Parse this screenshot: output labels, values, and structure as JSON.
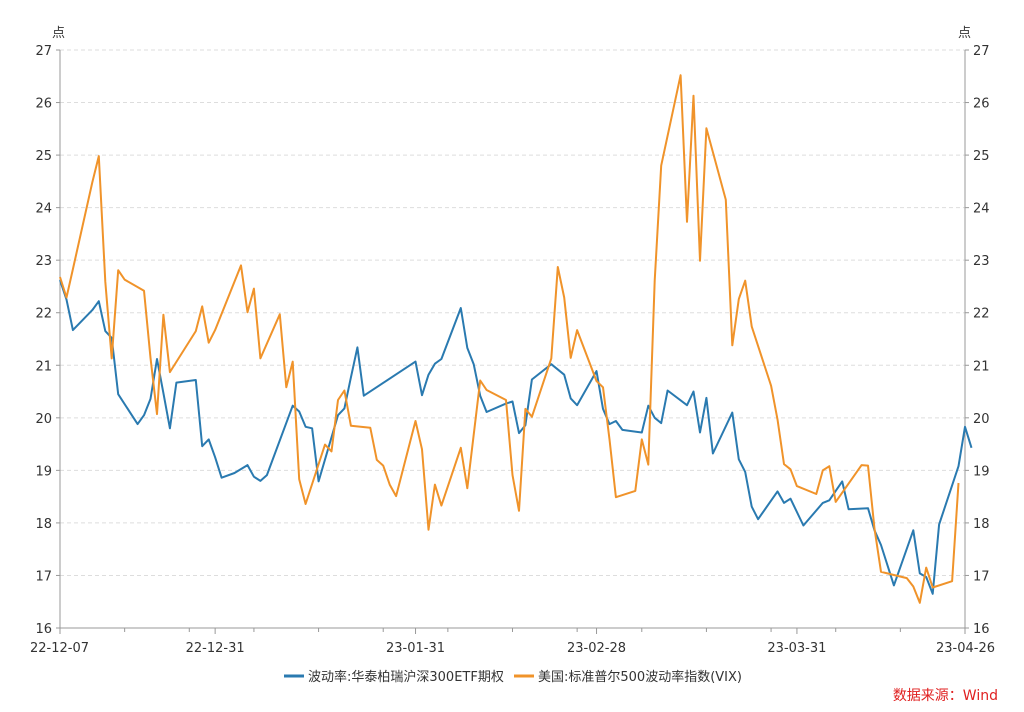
{
  "chart_data": {
    "type": "line",
    "y_unit_left": "点",
    "y_unit_right": "点",
    "ylim": [
      16,
      27
    ],
    "yticks": [
      16,
      17,
      18,
      19,
      20,
      21,
      22,
      23,
      24,
      25,
      26,
      27
    ],
    "xlim": [
      "2022-12-07",
      "2023-04-26"
    ],
    "xtick_labels": [
      "22-12-07",
      "22-12-31",
      "23-01-31",
      "23-02-28",
      "23-03-31",
      "23-04-26"
    ],
    "xtick_dates": [
      "2022-12-07",
      "2022-12-31",
      "2023-01-31",
      "2023-02-28",
      "2023-03-31",
      "2023-04-26"
    ],
    "grid": true,
    "legend_position": "bottom",
    "series": [
      {
        "name": "波动率:华泰柏瑞沪深300ETF期权",
        "color": "#2a7ab0",
        "points": [
          [
            "2022-12-07",
            22.62
          ],
          [
            "2022-12-08",
            22.25
          ],
          [
            "2022-12-09",
            21.67
          ],
          [
            "2022-12-12",
            22.05
          ],
          [
            "2022-12-13",
            22.22
          ],
          [
            "2022-12-14",
            21.65
          ],
          [
            "2022-12-15",
            21.52
          ],
          [
            "2022-12-16",
            20.45
          ],
          [
            "2022-12-19",
            19.88
          ],
          [
            "2022-12-20",
            20.05
          ],
          [
            "2022-12-21",
            20.36
          ],
          [
            "2022-12-22",
            21.12
          ],
          [
            "2022-12-23",
            20.47
          ],
          [
            "2022-12-24",
            19.8
          ],
          [
            "2022-12-25",
            20.67
          ],
          [
            "2022-12-28",
            20.72
          ],
          [
            "2022-12-29",
            19.46
          ],
          [
            "2022-12-30",
            19.59
          ],
          [
            "2022-12-31",
            19.25
          ],
          [
            "2023-01-01",
            18.86
          ],
          [
            "2023-01-03",
            18.95
          ],
          [
            "2023-01-05",
            19.1
          ],
          [
            "2023-01-06",
            18.88
          ],
          [
            "2023-01-07",
            18.8
          ],
          [
            "2023-01-08",
            18.91
          ],
          [
            "2023-01-12",
            20.23
          ],
          [
            "2023-01-13",
            20.12
          ],
          [
            "2023-01-14",
            19.83
          ],
          [
            "2023-01-15",
            19.8
          ],
          [
            "2023-01-16",
            18.79
          ],
          [
            "2023-01-19",
            20.05
          ],
          [
            "2023-01-20",
            20.18
          ],
          [
            "2023-01-21",
            20.77
          ],
          [
            "2023-01-22",
            21.34
          ],
          [
            "2023-01-23",
            20.42
          ],
          [
            "2023-01-31",
            21.07
          ],
          [
            "2023-02-01",
            20.43
          ],
          [
            "2023-02-02",
            20.82
          ],
          [
            "2023-02-03",
            21.03
          ],
          [
            "2023-02-04",
            21.12
          ],
          [
            "2023-02-07",
            22.09
          ],
          [
            "2023-02-08",
            21.33
          ],
          [
            "2023-02-09",
            21.02
          ],
          [
            "2023-02-10",
            20.42
          ],
          [
            "2023-02-11",
            20.11
          ],
          [
            "2023-02-14",
            20.27
          ],
          [
            "2023-02-15",
            20.31
          ],
          [
            "2023-02-16",
            19.71
          ],
          [
            "2023-02-17",
            19.86
          ],
          [
            "2023-02-18",
            20.73
          ],
          [
            "2023-02-21",
            21.02
          ],
          [
            "2023-02-23",
            20.82
          ],
          [
            "2023-02-24",
            20.37
          ],
          [
            "2023-02-25",
            20.24
          ],
          [
            "2023-02-28",
            20.89
          ],
          [
            "2023-03-01",
            20.17
          ],
          [
            "2023-03-02",
            19.88
          ],
          [
            "2023-03-03",
            19.94
          ],
          [
            "2023-03-04",
            19.77
          ],
          [
            "2023-03-07",
            19.72
          ],
          [
            "2023-03-08",
            20.23
          ],
          [
            "2023-03-09",
            20.0
          ],
          [
            "2023-03-10",
            19.9
          ],
          [
            "2023-03-11",
            20.52
          ],
          [
            "2023-03-14",
            20.24
          ],
          [
            "2023-03-15",
            20.5
          ],
          [
            "2023-03-16",
            19.72
          ],
          [
            "2023-03-17",
            20.38
          ],
          [
            "2023-03-18",
            19.32
          ],
          [
            "2023-03-21",
            20.1
          ],
          [
            "2023-03-22",
            19.21
          ],
          [
            "2023-03-23",
            18.97
          ],
          [
            "2023-03-24",
            18.31
          ],
          [
            "2023-03-25",
            18.07
          ],
          [
            "2023-03-28",
            18.6
          ],
          [
            "2023-03-29",
            18.38
          ],
          [
            "2023-03-30",
            18.46
          ],
          [
            "2023-04-01",
            17.95
          ],
          [
            "2023-04-04",
            18.38
          ],
          [
            "2023-04-05",
            18.43
          ],
          [
            "2023-04-06",
            18.61
          ],
          [
            "2023-04-07",
            18.79
          ],
          [
            "2023-04-08",
            18.26
          ],
          [
            "2023-04-11",
            18.28
          ],
          [
            "2023-04-12",
            17.86
          ],
          [
            "2023-04-13",
            17.58
          ],
          [
            "2023-04-15",
            16.81
          ],
          [
            "2023-04-18",
            17.86
          ],
          [
            "2023-04-19",
            17.04
          ],
          [
            "2023-04-20",
            16.97
          ],
          [
            "2023-04-21",
            16.65
          ],
          [
            "2023-04-22",
            17.97
          ],
          [
            "2023-04-25",
            19.08
          ],
          [
            "2023-04-26",
            19.83
          ],
          [
            "2023-04-27",
            19.43
          ]
        ]
      },
      {
        "name": "美国:标准普尔500波动率指数(VIX)",
        "color": "#f0932a",
        "points": [
          [
            "2022-12-07",
            22.68
          ],
          [
            "2022-12-08",
            22.29
          ],
          [
            "2022-12-09",
            22.83
          ],
          [
            "2022-12-12",
            24.48
          ],
          [
            "2022-12-13",
            24.98
          ],
          [
            "2022-12-14",
            22.59
          ],
          [
            "2022-12-15",
            21.13
          ],
          [
            "2022-12-16",
            22.81
          ],
          [
            "2022-12-17",
            22.63
          ],
          [
            "2022-12-20",
            22.42
          ],
          [
            "2022-12-21",
            21.14
          ],
          [
            "2022-12-22",
            20.07
          ],
          [
            "2022-12-23",
            21.96
          ],
          [
            "2022-12-24",
            20.87
          ],
          [
            "2022-12-28",
            21.65
          ],
          [
            "2022-12-29",
            22.12
          ],
          [
            "2022-12-30",
            21.43
          ],
          [
            "2022-12-31",
            21.67
          ],
          [
            "2023-01-04",
            22.9
          ],
          [
            "2023-01-05",
            22.01
          ],
          [
            "2023-01-06",
            22.46
          ],
          [
            "2023-01-07",
            21.13
          ],
          [
            "2023-01-10",
            21.97
          ],
          [
            "2023-01-11",
            20.58
          ],
          [
            "2023-01-12",
            21.07
          ],
          [
            "2023-01-13",
            18.83
          ],
          [
            "2023-01-14",
            18.36
          ],
          [
            "2023-01-17",
            19.49
          ],
          [
            "2023-01-18",
            19.36
          ],
          [
            "2023-01-19",
            20.34
          ],
          [
            "2023-01-20",
            20.52
          ],
          [
            "2023-01-21",
            19.85
          ],
          [
            "2023-01-24",
            19.81
          ],
          [
            "2023-01-25",
            19.2
          ],
          [
            "2023-01-26",
            19.09
          ],
          [
            "2023-01-27",
            18.73
          ],
          [
            "2023-01-28",
            18.51
          ],
          [
            "2023-01-31",
            19.94
          ],
          [
            "2023-02-01",
            19.4
          ],
          [
            "2023-02-02",
            17.87
          ],
          [
            "2023-02-03",
            18.73
          ],
          [
            "2023-02-04",
            18.33
          ],
          [
            "2023-02-07",
            19.43
          ],
          [
            "2023-02-08",
            18.66
          ],
          [
            "2023-02-10",
            20.71
          ],
          [
            "2023-02-11",
            20.53
          ],
          [
            "2023-02-14",
            20.34
          ],
          [
            "2023-02-15",
            18.91
          ],
          [
            "2023-02-16",
            18.23
          ],
          [
            "2023-02-17",
            20.17
          ],
          [
            "2023-02-18",
            20.02
          ],
          [
            "2023-02-21",
            21.13
          ],
          [
            "2023-02-22",
            22.87
          ],
          [
            "2023-02-23",
            22.29
          ],
          [
            "2023-02-24",
            21.14
          ],
          [
            "2023-02-25",
            21.67
          ],
          [
            "2023-02-28",
            20.7
          ],
          [
            "2023-03-01",
            20.58
          ],
          [
            "2023-03-02",
            19.59
          ],
          [
            "2023-03-03",
            18.49
          ],
          [
            "2023-03-06",
            18.61
          ],
          [
            "2023-03-07",
            19.59
          ],
          [
            "2023-03-08",
            19.11
          ],
          [
            "2023-03-09",
            22.61
          ],
          [
            "2023-03-10",
            24.8
          ],
          [
            "2023-03-13",
            26.52
          ],
          [
            "2023-03-14",
            23.73
          ],
          [
            "2023-03-15",
            26.13
          ],
          [
            "2023-03-16",
            22.99
          ],
          [
            "2023-03-17",
            25.51
          ],
          [
            "2023-03-20",
            24.15
          ],
          [
            "2023-03-21",
            21.38
          ],
          [
            "2023-03-22",
            22.26
          ],
          [
            "2023-03-23",
            22.61
          ],
          [
            "2023-03-24",
            21.74
          ],
          [
            "2023-03-27",
            20.61
          ],
          [
            "2023-03-28",
            19.97
          ],
          [
            "2023-03-29",
            19.12
          ],
          [
            "2023-03-30",
            19.02
          ],
          [
            "2023-03-31",
            18.7
          ],
          [
            "2023-04-03",
            18.55
          ],
          [
            "2023-04-04",
            19.0
          ],
          [
            "2023-04-05",
            19.08
          ],
          [
            "2023-04-06",
            18.4
          ],
          [
            "2023-04-10",
            19.1
          ],
          [
            "2023-04-11",
            19.09
          ],
          [
            "2023-04-12",
            17.89
          ],
          [
            "2023-04-13",
            17.07
          ],
          [
            "2023-04-14",
            17.04
          ],
          [
            "2023-04-17",
            16.95
          ],
          [
            "2023-04-18",
            16.79
          ],
          [
            "2023-04-19",
            16.48
          ],
          [
            "2023-04-20",
            17.15
          ],
          [
            "2023-04-21",
            16.77
          ],
          [
            "2023-04-24",
            16.89
          ],
          [
            "2023-04-25",
            18.76
          ]
        ]
      }
    ]
  },
  "source_text": "数据来源：Wind"
}
